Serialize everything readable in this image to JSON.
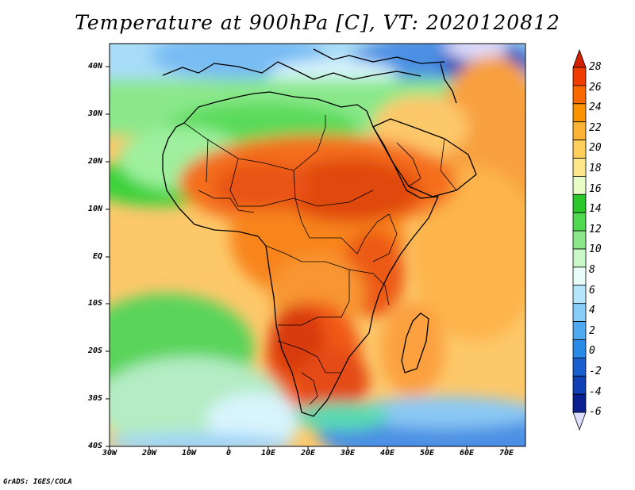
{
  "title": "Temperature at 900hPa [C], VT: 2020120812",
  "credit": "GrADS: IGES/COLA",
  "map": {
    "lat_labels": [
      "40N",
      "30N",
      "20N",
      "10N",
      "EQ",
      "10S",
      "20S",
      "30S",
      "40S"
    ],
    "lon_labels": [
      "30W",
      "20W",
      "10W",
      "0",
      "10E",
      "20E",
      "30E",
      "40E",
      "50E",
      "60E",
      "70E"
    ]
  },
  "colorbar": {
    "labels": [
      "28",
      "26",
      "24",
      "22",
      "20",
      "18",
      "16",
      "14",
      "12",
      "10",
      "8",
      "6",
      "4",
      "2",
      "0",
      "-2",
      "-4",
      "-6"
    ],
    "colors": [
      "#d42000",
      "#f03c00",
      "#f86a00",
      "#fb9200",
      "#fdb334",
      "#fecf5a",
      "#fee68b",
      "#e8fcc8",
      "#2ac82a",
      "#50d850",
      "#8ae88a",
      "#c8f8c8",
      "#e8fcf8",
      "#b4e6fc",
      "#86cdf8",
      "#50a8f0",
      "#2a8ae8",
      "#1a5fd0",
      "#0f40b4",
      "#0a1f90",
      "#dcdcfc"
    ]
  }
}
